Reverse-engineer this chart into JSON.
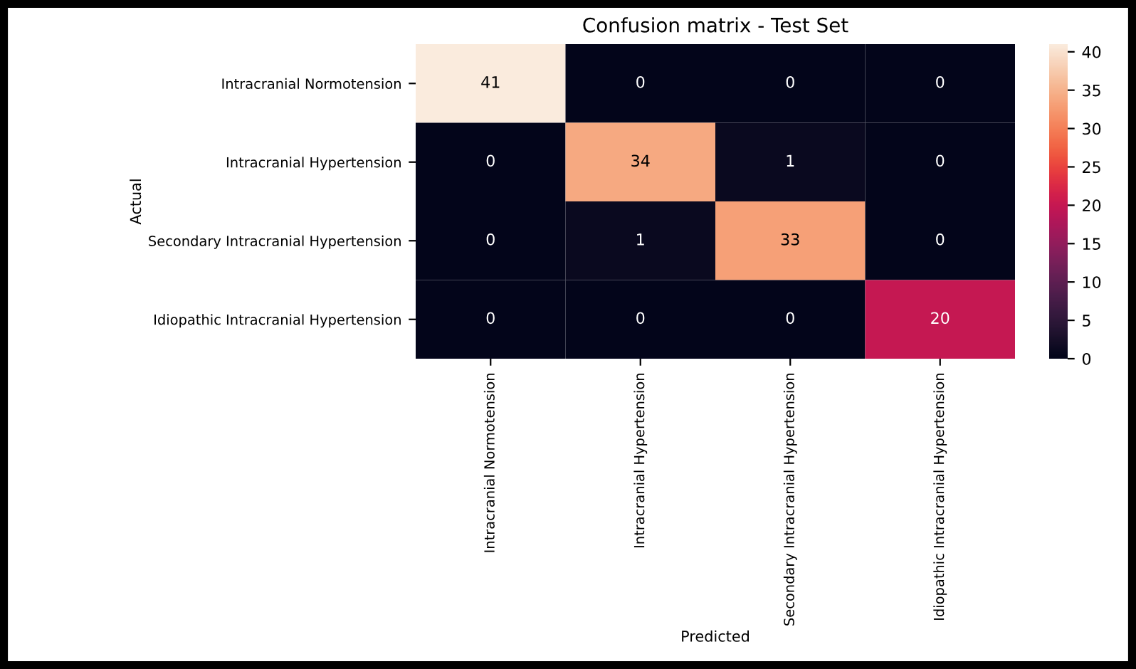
{
  "chart_data": {
    "type": "heatmap",
    "title": "Confusion matrix - Test Set",
    "xlabel": "Predicted",
    "ylabel": "Actual",
    "categories": [
      "Intracranial Normotension",
      "Intracranial Hypertension",
      "Secondary Intracranial Hypertension",
      "Idiopathic Intracranial Hypertension"
    ],
    "y_categories": [
      "Intracranial Normotension",
      "Intracranial Hypertension",
      "Secondary Intracranial Hypertension",
      "Idiopathic Intracranial Hypertension"
    ],
    "cells": [
      [
        41,
        0,
        0,
        0
      ],
      [
        0,
        34,
        1,
        0
      ],
      [
        0,
        1,
        33,
        0
      ],
      [
        0,
        0,
        0,
        20
      ]
    ],
    "clim": [
      0,
      41
    ],
    "cticks": [
      0,
      5,
      10,
      15,
      20,
      25,
      30,
      35,
      40
    ],
    "data_labels": true
  }
}
